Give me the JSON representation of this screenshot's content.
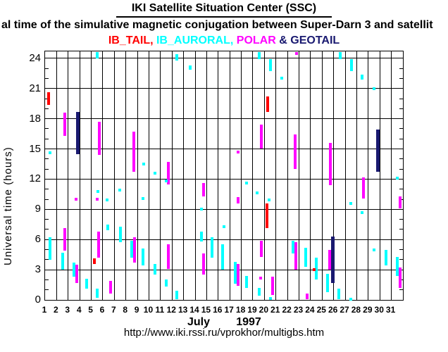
{
  "header": {
    "title": "IKI Satellite Situation Center (SSC)",
    "subtitle_visible": "al time of the simulative magnetic conjugation between Super-Darn 3 and satellit",
    "legend": [
      {
        "label": "IB_TAIL,",
        "color": "#ff0000"
      },
      {
        "label": "IB_AURORAL,",
        "color": "#00ffff"
      },
      {
        "label": "POLAR",
        "color": "#ff00ff"
      },
      {
        "label": "&",
        "color": "#191970"
      },
      {
        "label": "GEOTAIL",
        "color": "#191970"
      }
    ]
  },
  "footer": {
    "url": "http://www.iki.rssi.ru/vprokhor/multigbs.htm"
  },
  "chart_data": {
    "type": "scatter",
    "title": "IKI Satellite Situation Center (SSC)",
    "subtitle": "al time of the simulative magnetic conjugation between Super-Darn 3 and satellit",
    "ylabel": "Universal time (hours)",
    "xlabel_month": "July",
    "xlabel_year": "1997",
    "ylim": [
      0,
      24.7
    ],
    "yticks": [
      0,
      3,
      6,
      9,
      12,
      15,
      18,
      21,
      24
    ],
    "x_days": [
      1,
      2,
      3,
      4,
      5,
      6,
      7,
      8,
      9,
      10,
      11,
      12,
      13,
      14,
      15,
      16,
      17,
      18,
      19,
      20,
      21,
      22,
      23,
      24,
      25,
      26,
      27,
      28,
      29,
      30,
      31
    ],
    "grid": true,
    "legend_position": "top",
    "series_colors": {
      "tail": "#ff0000",
      "auroral": "#00ffff",
      "polar": "#ff00ff",
      "geotail": "#191970"
    },
    "series_names": {
      "tail": "IB_TAIL",
      "auroral": "IB_AURORAL",
      "polar": "POLAR",
      "geotail": "GEOTAIL"
    },
    "marks": [
      {
        "d": 1,
        "sat": "tail",
        "s": 19.4,
        "e": 20.6,
        "fx": 0.2
      },
      {
        "d": 1,
        "sat": "auroral",
        "at": 14.6,
        "fx": 0.3
      },
      {
        "d": 1,
        "sat": "auroral",
        "s": 4.0,
        "e": 6.2,
        "fx": 0.3
      },
      {
        "d": 2,
        "sat": "polar",
        "s": 16.3,
        "e": 18.6,
        "fx": 0.58
      },
      {
        "d": 2,
        "sat": "auroral",
        "s": 3.0,
        "e": 4.7,
        "fx": 0.4
      },
      {
        "d": 2,
        "sat": "polar",
        "s": 4.9,
        "e": 7.1,
        "fx": 0.6
      },
      {
        "d": 3,
        "sat": "geotail",
        "s": 14.5,
        "e": 18.7,
        "fx": 0.7
      },
      {
        "d": 3,
        "sat": "polar",
        "at": 10.0,
        "fx": 0.55
      },
      {
        "d": 3,
        "sat": "auroral",
        "s": 2.3,
        "e": 3.7,
        "fx": 0.36
      },
      {
        "d": 3,
        "sat": "polar",
        "s": 1.7,
        "e": 3.5,
        "fx": 0.62
      },
      {
        "d": 4,
        "sat": "auroral",
        "s": 1.1,
        "e": 2.1,
        "fx": 0.45
      },
      {
        "d": 5,
        "sat": "auroral",
        "s": 24.0,
        "e": 24.6,
        "fx": 0.4
      },
      {
        "d": 5,
        "sat": "polar",
        "s": 14.4,
        "e": 17.7,
        "fx": 0.56
      },
      {
        "d": 5,
        "sat": "auroral",
        "at": 10.8,
        "fx": 0.44
      },
      {
        "d": 5,
        "sat": "polar",
        "at": 10.0,
        "fx": 0.38
      },
      {
        "d": 5,
        "sat": "polar",
        "s": 4.2,
        "e": 6.8,
        "fx": 0.54
      },
      {
        "d": 5,
        "sat": "tail",
        "s": 3.6,
        "e": 4.1,
        "fx": 0.18
      },
      {
        "d": 5,
        "sat": "auroral",
        "s": 0.2,
        "e": 1.1,
        "fx": 0.4
      },
      {
        "d": 6,
        "sat": "auroral",
        "at": 9.9,
        "fx": 0.25
      },
      {
        "d": 6,
        "sat": "auroral",
        "s": 6.9,
        "e": 7.5,
        "fx": 0.33
      },
      {
        "d": 6,
        "sat": "polar",
        "s": 0.6,
        "e": 1.9,
        "fx": 0.55
      },
      {
        "d": 7,
        "sat": "auroral",
        "at": 10.9,
        "fx": 0.32
      },
      {
        "d": 7,
        "sat": "auroral",
        "s": 5.7,
        "e": 7.3,
        "fx": 0.38
      },
      {
        "d": 8,
        "sat": "polar",
        "s": 12.7,
        "e": 16.7,
        "fx": 0.55
      },
      {
        "d": 8,
        "sat": "auroral",
        "s": 4.2,
        "e": 5.9,
        "fx": 0.36
      },
      {
        "d": 8,
        "sat": "polar",
        "s": 3.7,
        "e": 6.2,
        "fx": 0.62
      },
      {
        "d": 9,
        "sat": "auroral",
        "at": 13.5,
        "fx": 0.4
      },
      {
        "d": 9,
        "sat": "auroral",
        "at": 10.1,
        "fx": 0.35
      },
      {
        "d": 9,
        "sat": "auroral",
        "s": 3.4,
        "e": 5.1,
        "fx": 0.35
      },
      {
        "d": 10,
        "sat": "auroral",
        "at": 12.6,
        "fx": 0.37
      },
      {
        "d": 10,
        "sat": "auroral",
        "s": 2.5,
        "e": 3.6,
        "fx": 0.37
      },
      {
        "d": 11,
        "sat": "polar",
        "s": 11.5,
        "e": 13.7,
        "fx": 0.58
      },
      {
        "d": 11,
        "sat": "auroral",
        "at": 11.8,
        "fx": 0.38
      },
      {
        "d": 11,
        "sat": "polar",
        "s": 3.1,
        "e": 5.5,
        "fx": 0.58
      },
      {
        "d": 11,
        "sat": "auroral",
        "s": 1.3,
        "e": 2.0,
        "fx": 0.38
      },
      {
        "d": 12,
        "sat": "auroral",
        "s": 23.8,
        "e": 24.4,
        "fx": 0.3
      },
      {
        "d": 12,
        "sat": "auroral",
        "s": 0.1,
        "e": 0.9,
        "fx": 0.3
      },
      {
        "d": 13,
        "sat": "auroral",
        "s": 22.9,
        "e": 23.3,
        "fx": 0.42
      },
      {
        "d": 14,
        "sat": "polar",
        "s": 10.3,
        "e": 11.6,
        "fx": 0.62
      },
      {
        "d": 14,
        "sat": "auroral",
        "at": 9.0,
        "fx": 0.4
      },
      {
        "d": 14,
        "sat": "auroral",
        "s": 5.8,
        "e": 6.8,
        "fx": 0.4
      },
      {
        "d": 14,
        "sat": "polar",
        "s": 2.5,
        "e": 4.6,
        "fx": 0.63
      },
      {
        "d": 15,
        "sat": "auroral",
        "s": 4.2,
        "e": 6.2,
        "fx": 0.35
      },
      {
        "d": 16,
        "sat": "auroral",
        "at": 7.3,
        "fx": 0.37
      },
      {
        "d": 16,
        "sat": "auroral",
        "s": 3.0,
        "e": 5.5,
        "fx": 0.27
      },
      {
        "d": 17,
        "sat": "polar",
        "at": 14.7,
        "fx": 0.58
      },
      {
        "d": 17,
        "sat": "polar",
        "s": 9.6,
        "e": 10.2,
        "fx": 0.6
      },
      {
        "d": 17,
        "sat": "auroral",
        "s": 1.6,
        "e": 3.8,
        "fx": 0.34
      },
      {
        "d": 17,
        "sat": "polar",
        "s": 1.4,
        "e": 3.6,
        "fx": 0.6
      },
      {
        "d": 18,
        "sat": "auroral",
        "at": 11.6,
        "fx": 0.36
      },
      {
        "d": 18,
        "sat": "auroral",
        "s": 1.2,
        "e": 2.4,
        "fx": 0.36
      },
      {
        "d": 19,
        "sat": "auroral",
        "s": 23.9,
        "e": 24.6,
        "fx": 0.41
      },
      {
        "d": 19,
        "sat": "polar",
        "s": 15.0,
        "e": 17.4,
        "fx": 0.61
      },
      {
        "d": 19,
        "sat": "auroral",
        "at": 10.6,
        "fx": 0.27
      },
      {
        "d": 19,
        "sat": "polar",
        "s": 4.3,
        "e": 5.9,
        "fx": 0.61
      },
      {
        "d": 19,
        "sat": "polar",
        "at": 2.2,
        "fx": 0.57
      },
      {
        "d": 19,
        "sat": "auroral",
        "s": 0.4,
        "e": 1.2,
        "fx": 0.43
      },
      {
        "d": 20,
        "sat": "auroral",
        "s": 22.7,
        "e": 23.9,
        "fx": 0.43
      },
      {
        "d": 20,
        "sat": "tail",
        "s": 18.7,
        "e": 20.2,
        "fx": 0.14
      },
      {
        "d": 20,
        "sat": "auroral",
        "at": 9.9,
        "fx": 0.29
      },
      {
        "d": 20,
        "sat": "tail",
        "s": 7.1,
        "e": 9.6,
        "fx": 0.09
      },
      {
        "d": 20,
        "sat": "polar",
        "s": 0.5,
        "e": 2.3,
        "fx": 0.58
      },
      {
        "d": 20,
        "sat": "auroral",
        "at": 0.15,
        "fx": 0.39
      },
      {
        "d": 21,
        "sat": "auroral",
        "at": 22.0,
        "fx": 0.41
      },
      {
        "d": 22,
        "sat": "polar",
        "at": 24.5,
        "fx": 0.65
      },
      {
        "d": 22,
        "sat": "polar",
        "s": 13.0,
        "e": 16.4,
        "fx": 0.56
      },
      {
        "d": 22,
        "sat": "auroral",
        "s": 4.6,
        "e": 5.9,
        "fx": 0.38
      },
      {
        "d": 22,
        "sat": "polar",
        "s": 3.0,
        "e": 5.7,
        "fx": 0.58
      },
      {
        "d": 23,
        "sat": "auroral",
        "s": 3.3,
        "e": 5.2,
        "fx": 0.43
      },
      {
        "d": 23,
        "sat": "polar",
        "s": 0.1,
        "e": 0.6,
        "fx": 0.57
      },
      {
        "d": 24,
        "sat": "auroral",
        "s": 2.0,
        "e": 4.2,
        "fx": 0.35
      },
      {
        "d": 24,
        "sat": "tail",
        "at": 3.0,
        "fx": 0.21
      },
      {
        "d": 25,
        "sat": "polar",
        "s": 11.4,
        "e": 15.6,
        "fx": 0.6
      },
      {
        "d": 25,
        "sat": "polar",
        "s": 3.0,
        "e": 5.0,
        "fx": 0.56
      },
      {
        "d": 25,
        "sat": "geotail",
        "s": 1.7,
        "e": 6.3,
        "fx": 0.78
      },
      {
        "d": 25,
        "sat": "auroral",
        "s": 0.8,
        "e": 2.6,
        "fx": 0.37
      },
      {
        "d": 26,
        "sat": "auroral",
        "s": 23.9,
        "e": 24.6,
        "fx": 0.43
      },
      {
        "d": 26,
        "sat": "auroral",
        "s": 0.1,
        "e": 1.1,
        "fx": 0.33
      },
      {
        "d": 27,
        "sat": "auroral",
        "s": 22.7,
        "e": 23.9,
        "fx": 0.45
      },
      {
        "d": 27,
        "sat": "auroral",
        "at": 9.6,
        "fx": 0.38
      },
      {
        "d": 27,
        "sat": "auroral",
        "at": 0.1,
        "fx": 0.38
      },
      {
        "d": 28,
        "sat": "auroral",
        "s": 21.9,
        "e": 22.4,
        "fx": 0.36
      },
      {
        "d": 28,
        "sat": "polar",
        "s": 10.1,
        "e": 12.2,
        "fx": 0.46
      },
      {
        "d": 28,
        "sat": "auroral",
        "at": 8.7,
        "fx": 0.36
      },
      {
        "d": 29,
        "sat": "auroral",
        "at": 21.0,
        "fx": 0.37
      },
      {
        "d": 29,
        "sat": "geotail",
        "s": 12.7,
        "e": 16.9,
        "fx": 0.66
      },
      {
        "d": 29,
        "sat": "auroral",
        "at": 5.0,
        "fx": 0.38
      },
      {
        "d": 30,
        "sat": "auroral",
        "s": 3.4,
        "e": 5.0,
        "fx": 0.4
      },
      {
        "d": 31,
        "sat": "auroral",
        "at": 12.1,
        "fx": 0.41
      },
      {
        "d": 31,
        "sat": "polar",
        "s": 9.1,
        "e": 10.3,
        "fx": 0.63
      },
      {
        "d": 31,
        "sat": "auroral",
        "s": 2.4,
        "e": 4.3,
        "fx": 0.41
      },
      {
        "d": 31,
        "sat": "polar",
        "s": 1.2,
        "e": 3.2,
        "fx": 0.63
      }
    ]
  }
}
